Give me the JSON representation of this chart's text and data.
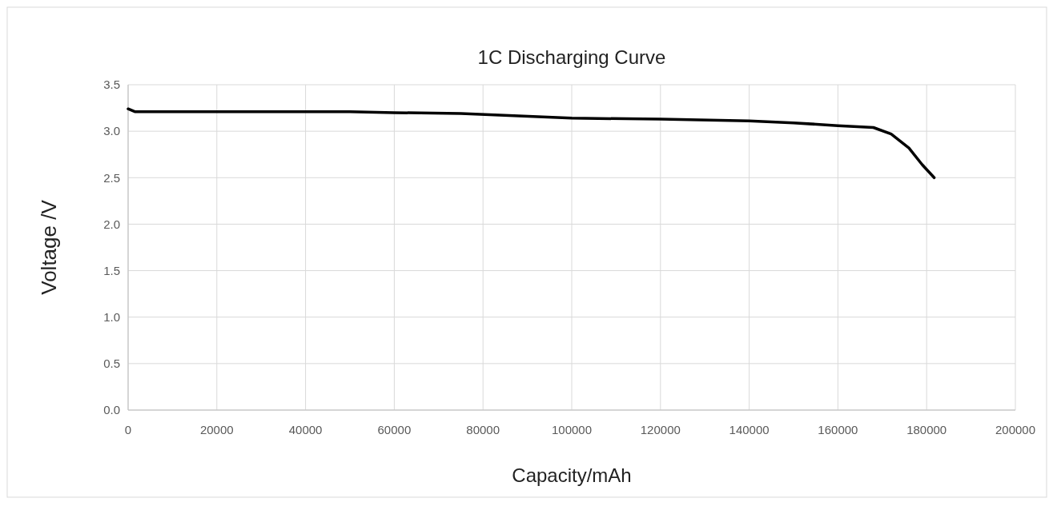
{
  "chart_data": {
    "type": "line",
    "title": "1C Discharging Curve",
    "xlabel": "Capacity/mAh",
    "ylabel": "Voltage /V",
    "xlim": [
      0,
      200000
    ],
    "xticks": [
      0,
      20000,
      40000,
      60000,
      80000,
      100000,
      120000,
      140000,
      160000,
      180000,
      200000
    ],
    "ylim": [
      0,
      3.5
    ],
    "yticks": [
      {
        "value": 0,
        "label": "0.0"
      },
      {
        "value": 0.5,
        "label": "0.5"
      },
      {
        "value": 1,
        "label": "1.0"
      },
      {
        "value": 1.5,
        "label": "1.5"
      },
      {
        "value": 2,
        "label": "2.0"
      },
      {
        "value": 2.5,
        "label": "2.5"
      },
      {
        "value": 3,
        "label": "3.0"
      },
      {
        "value": 3.5,
        "label": "3.5"
      }
    ],
    "grid": true,
    "marker": "none",
    "line_style": "solid",
    "series": [
      {
        "color": "#000000",
        "x": [
          0,
          1500,
          5000,
          20000,
          50000,
          60000,
          75000,
          100000,
          120000,
          140000,
          150000,
          160000,
          168000,
          172000,
          176000,
          179000,
          181700
        ],
        "values": [
          3.24,
          3.21,
          3.21,
          3.21,
          3.21,
          3.2,
          3.19,
          3.14,
          3.13,
          3.11,
          3.09,
          3.06,
          3.04,
          2.97,
          2.82,
          2.64,
          2.5
        ]
      }
    ]
  }
}
